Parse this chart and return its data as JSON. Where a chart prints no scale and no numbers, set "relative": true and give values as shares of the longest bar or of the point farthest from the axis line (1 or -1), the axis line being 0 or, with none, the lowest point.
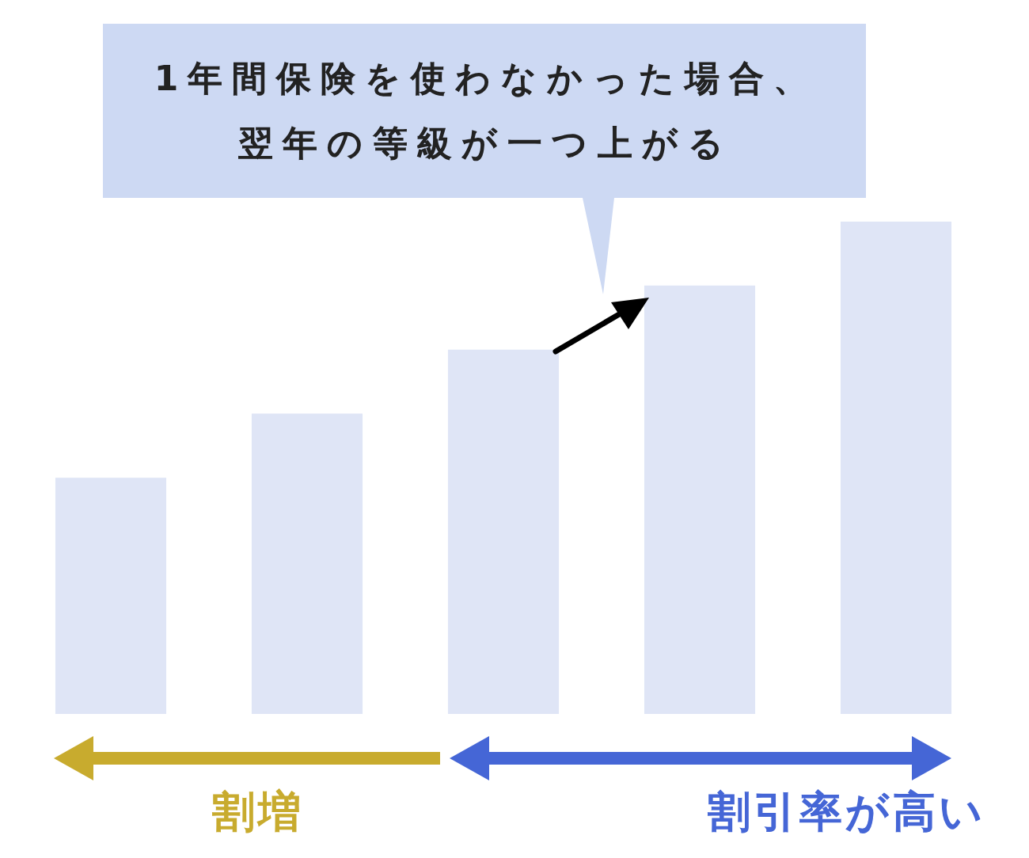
{
  "chart_data": {
    "type": "bar",
    "relative": true,
    "categories": [
      null,
      null,
      null,
      null,
      null
    ],
    "values": [
      0.48,
      0.61,
      0.74,
      0.87,
      1
    ],
    "color": "#dfe5f6",
    "annotations": [
      "1年間保険を使わなかった場合、翌年の等級が一つ上がる",
      "割増",
      "割引率が高い"
    ]
  }
}
